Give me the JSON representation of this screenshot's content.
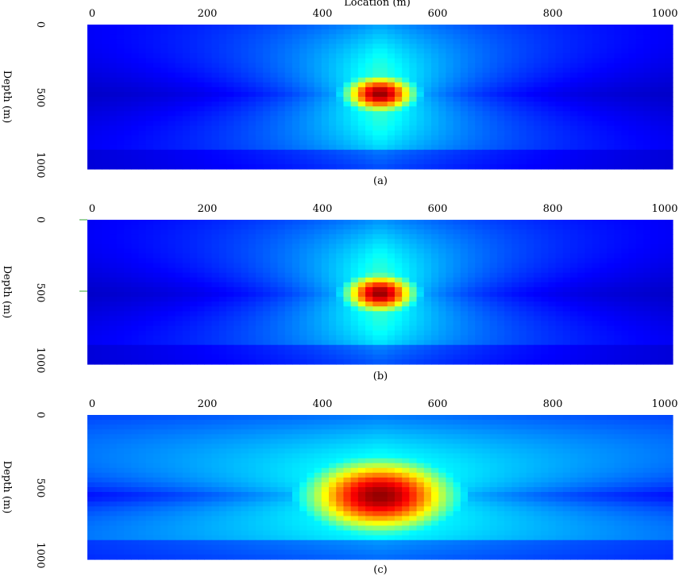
{
  "chart_data": [
    {
      "type": "heatmap",
      "panel": "(a)",
      "xlabel": "Location (m)",
      "ylabel": "Depth (m)",
      "xlim": [
        0,
        1000
      ],
      "ylim": [
        0,
        1000
      ],
      "x_ticks": [
        "0",
        "200",
        "400",
        "600",
        "800",
        "1000"
      ],
      "y_ticks": [
        "0",
        "500",
        "1000"
      ],
      "colormap": "jet",
      "peak": {
        "x": 500,
        "y": 480,
        "sx": 45,
        "sy": 95,
        "amp": 1.0
      },
      "caption": "(a)"
    },
    {
      "type": "heatmap",
      "panel": "(b)",
      "xlabel": "",
      "ylabel": "Depth (m)",
      "xlim": [
        0,
        1000
      ],
      "ylim": [
        0,
        1000
      ],
      "x_ticks": [
        "0",
        "200",
        "400",
        "600",
        "800",
        "1000"
      ],
      "y_ticks": [
        "0",
        "500",
        "1000"
      ],
      "colormap": "jet",
      "peak": {
        "x": 500,
        "y": 510,
        "sx": 45,
        "sy": 100,
        "amp": 1.0
      },
      "caption": "(b)"
    },
    {
      "type": "heatmap",
      "panel": "(c)",
      "xlabel": "",
      "ylabel": "Depth (m)",
      "xlim": [
        0,
        1000
      ],
      "ylim": [
        0,
        1000
      ],
      "x_ticks": [
        "0",
        "200",
        "400",
        "600",
        "800",
        "1000"
      ],
      "y_ticks": [
        "0",
        "500",
        "1000"
      ],
      "colormap": "jet",
      "peak": {
        "x": 500,
        "y": 560,
        "sx": 95,
        "sy": 190,
        "amp": 1.0
      },
      "caption": "(c)"
    }
  ],
  "colors": {
    "low": "#00008f",
    "high": "#800000",
    "tick_mark": "#3aa63a"
  }
}
